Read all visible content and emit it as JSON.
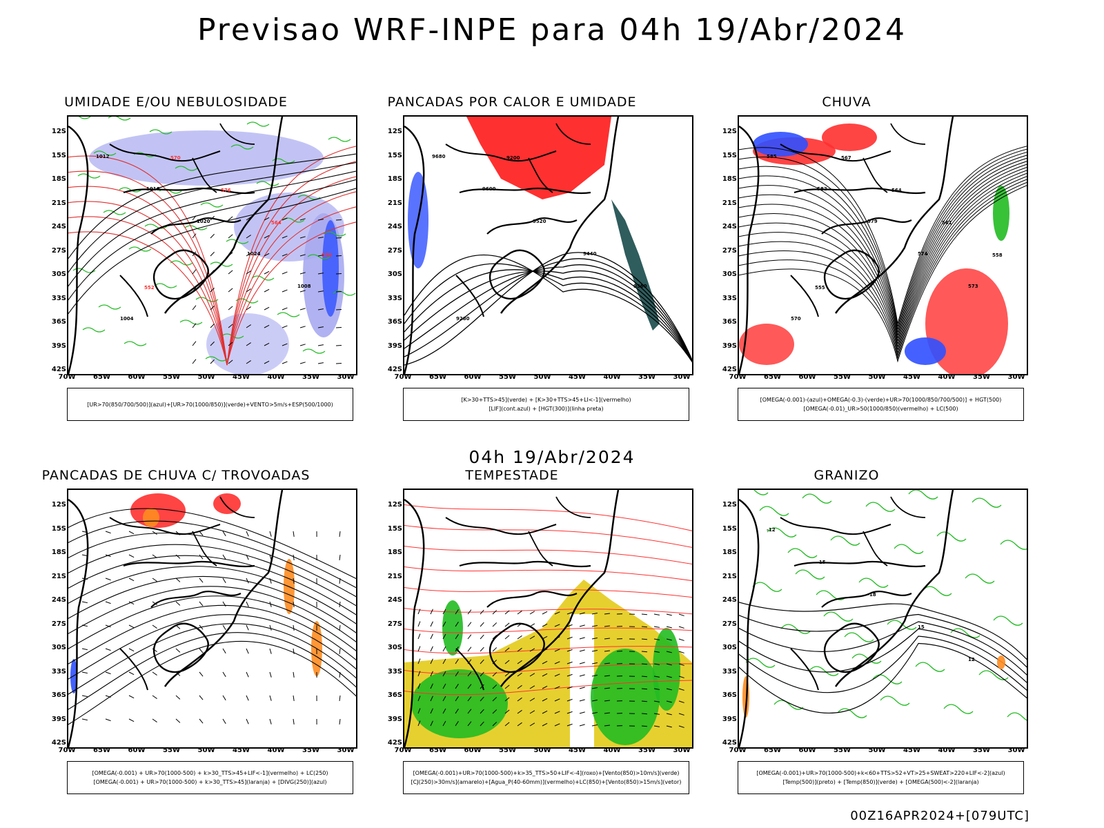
{
  "main_title": "Previsao WRF-INPE  para 04h 19/Abr/2024",
  "mid_title": "04h 19/Abr/2024",
  "footer": "00Z16APR2024+[079UTC]",
  "lat_labels": [
    "12S",
    "15S",
    "18S",
    "21S",
    "24S",
    "27S",
    "30S",
    "33S",
    "36S",
    "39S",
    "42S"
  ],
  "lon_labels": [
    "70W",
    "65W",
    "60W",
    "55W",
    "50W",
    "45W",
    "40W",
    "35W",
    "30W"
  ],
  "colors": {
    "blue": "#3050ff",
    "lightblue": "#a8aaf0",
    "green": "#22bb22",
    "red": "#ff3030",
    "darkred": "#e03030",
    "teal": "#2f5c5c",
    "orange": "#ff8c20",
    "yellow": "#e6d030"
  },
  "panels": [
    {
      "title": "UMIDADE E/OU NEBULOSIDADE",
      "legend": [
        "[UR>70(850/700/500)](azul)+[UR>70(1000/850)](verde)+VENTO>5m/s+ESP(500/1000)"
      ],
      "labels": [
        "1012",
        "1016",
        "1020",
        "1024",
        "1008",
        "1004",
        "570",
        "576",
        "564",
        "558",
        "552"
      ]
    },
    {
      "title": "PANCADAS POR CALOR E UMIDADE",
      "legend": [
        "[K>30+TTS>45](verde) + [K>30+TTS>45+LI<-1](vermelho)",
        "[LIF](cont.azul) + [HGT(300)](linha preta)"
      ],
      "labels": [
        "9680",
        "9600",
        "9520",
        "9440",
        "9360",
        "9280",
        "9200"
      ]
    },
    {
      "title": "CHUVA",
      "legend": [
        "[OMEGA(-0.001)-(azul)+OMEGA(-0.3)-(verde)+UR>70(1000/850/700/500)] + HGT(500)",
        "[OMEGA(-0.01)_UR>50(1000/850)(vermelho) + LC(500)"
      ],
      "labels": [
        "585",
        "582",
        "579",
        "576",
        "573",
        "570",
        "567",
        "564",
        "561",
        "558",
        "555"
      ]
    },
    {
      "title": "PANCADAS DE CHUVA C/ TROVOADAS",
      "legend": [
        "[OMEGA(-0.001) + UR>70(1000-500) + k>30_TTS>45+LIF<-1](vermelho) + LC(250)",
        "[OMEGA(-0.001) + UR>70(1000-500) + k>30_TTS>45](laranja) + [DIVG(250)](azul)"
      ],
      "labels": []
    },
    {
      "title": "TEMPESTADE",
      "legend": [
        "[OMEGA(-0.001)+UR>70(1000-500)+k>35_TTS>50+LIF<-4](roxo)+[Vento(850)>10m/s](verde)",
        "[CJ(250)>30m/s](amarelo)+[Agua_P(40-60mm)](vermelho)+LC(850)+[Vento(850)>15m/s](vetor)"
      ],
      "labels": []
    },
    {
      "title": "GRANIZO",
      "legend": [
        "[OMEGA(-0.001)+UR>70(1000-500)+k<60+TTS>52+VT>25+SWEAT>220+LIF<-2](azul)",
        "[Temp(500)](preto) + [Temp(850)](verde) + [OMEGA(500)<-2](laranja)"
      ],
      "labels": [
        "-12",
        "-15",
        "-18",
        "15",
        "12"
      ]
    }
  ]
}
